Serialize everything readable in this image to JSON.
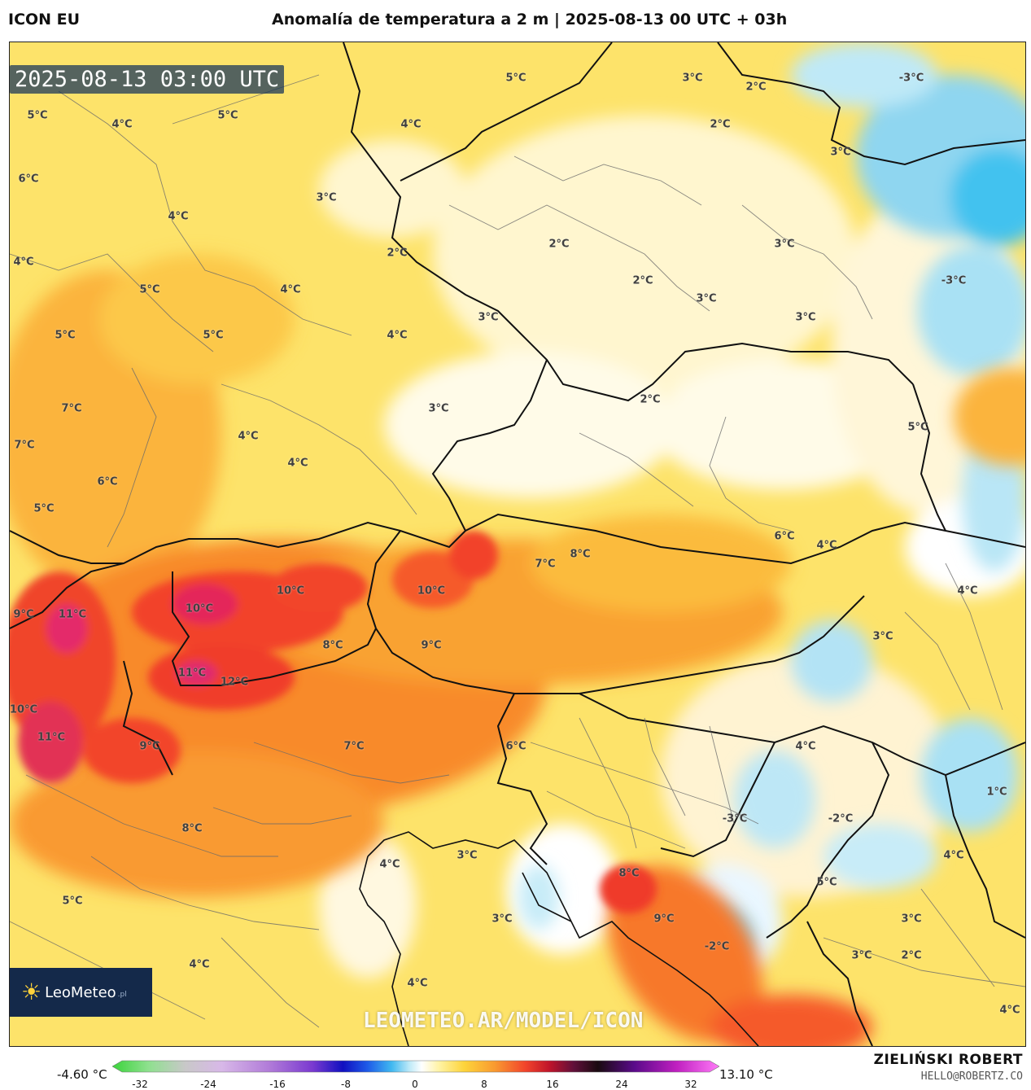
{
  "header": {
    "model": "ICON EU",
    "title": "Anomalía de temperatura a 2 m | 2025-08-13 00 UTC + 03h"
  },
  "map": {
    "timestamp": "2025-08-13 03:00 UTC",
    "logo": {
      "brand": "LeoMeteo",
      "tld": ".pl",
      "icon": "sun-icon"
    },
    "watermark": "LEOMETEO.AR/MODEL/ICON",
    "labels": [
      "5°C",
      "4°C",
      "5°C",
      "5°C",
      "4°C",
      "3°C",
      "2°C",
      "2°C",
      "-3°C",
      "2°C",
      "6°C",
      "3°C",
      "4°C",
      "3°C",
      "4°C",
      "4°C",
      "5°C",
      "2°C",
      "3°C",
      "2°C",
      "2°C",
      "3°C",
      "-3°C",
      "5°C",
      "5°C",
      "4°C",
      "3°C",
      "3°C",
      "7°C",
      "7°C",
      "4°C",
      "3°C",
      "2°C",
      "6°C",
      "4°C",
      "5°C",
      "5°C",
      "6°C",
      "4°C",
      "7°C",
      "8°C",
      "4°C",
      "9°C",
      "11°C",
      "10°C",
      "10°C",
      "10°C",
      "8°C",
      "9°C",
      "3°C",
      "11°C",
      "12°C",
      "10°C",
      "11°C",
      "9°C",
      "7°C",
      "6°C",
      "4°C",
      "1°C",
      "8°C",
      "-3°C",
      "-2°C",
      "4°C",
      "3°C",
      "4°C",
      "5°C",
      "8°C",
      "9°C",
      "3°C",
      "-2°C",
      "3°C",
      "3°C",
      "5°C",
      "4°C",
      "4°C",
      "4°C"
    ]
  },
  "colorbar": {
    "min_label": "-4.60 °C",
    "max_label": "13.10 °C",
    "ticks": [
      "-32",
      "-24",
      "-16",
      "-8",
      "0",
      "8",
      "16",
      "24",
      "32"
    ],
    "range": [
      -36,
      36
    ]
  },
  "credits": {
    "author": "ZIELIŃSKI ROBERT",
    "email": "HELLO@ROBERTZ.CO"
  }
}
